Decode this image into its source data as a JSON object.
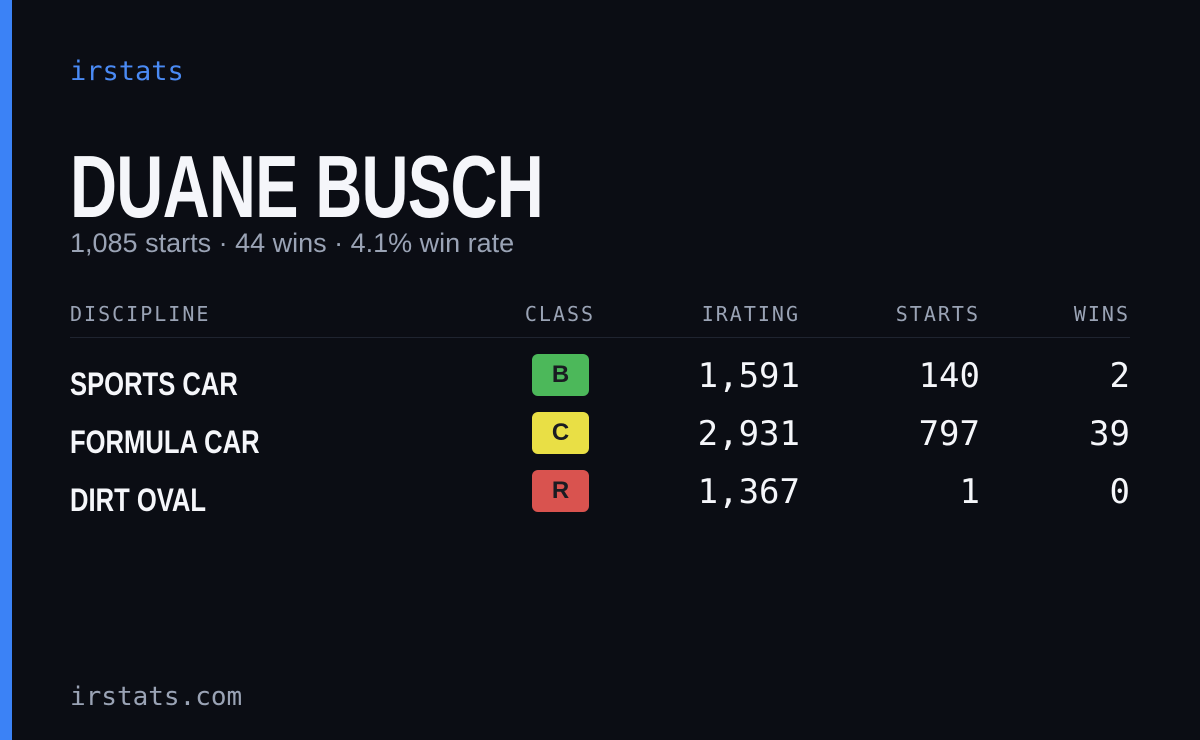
{
  "brand": "irstats",
  "driver": {
    "name": "DUANE BUSCH",
    "summary": "1,085 starts · 44 wins · 4.1% win rate"
  },
  "table": {
    "headers": [
      "DISCIPLINE",
      "CLASS",
      "IRATING",
      "STARTS",
      "WINS"
    ],
    "rows": [
      {
        "discipline": "SPORTS CAR",
        "class": "B",
        "class_color": "#4cb85a",
        "irating": "1,591",
        "starts": "140",
        "wins": "2"
      },
      {
        "discipline": "FORMULA CAR",
        "class": "C",
        "class_color": "#e9df45",
        "irating": "2,931",
        "starts": "797",
        "wins": "39"
      },
      {
        "discipline": "DIRT OVAL",
        "class": "R",
        "class_color": "#d9534f",
        "irating": "1,367",
        "starts": "1",
        "wins": "0"
      }
    ]
  },
  "footer": "irstats.com"
}
